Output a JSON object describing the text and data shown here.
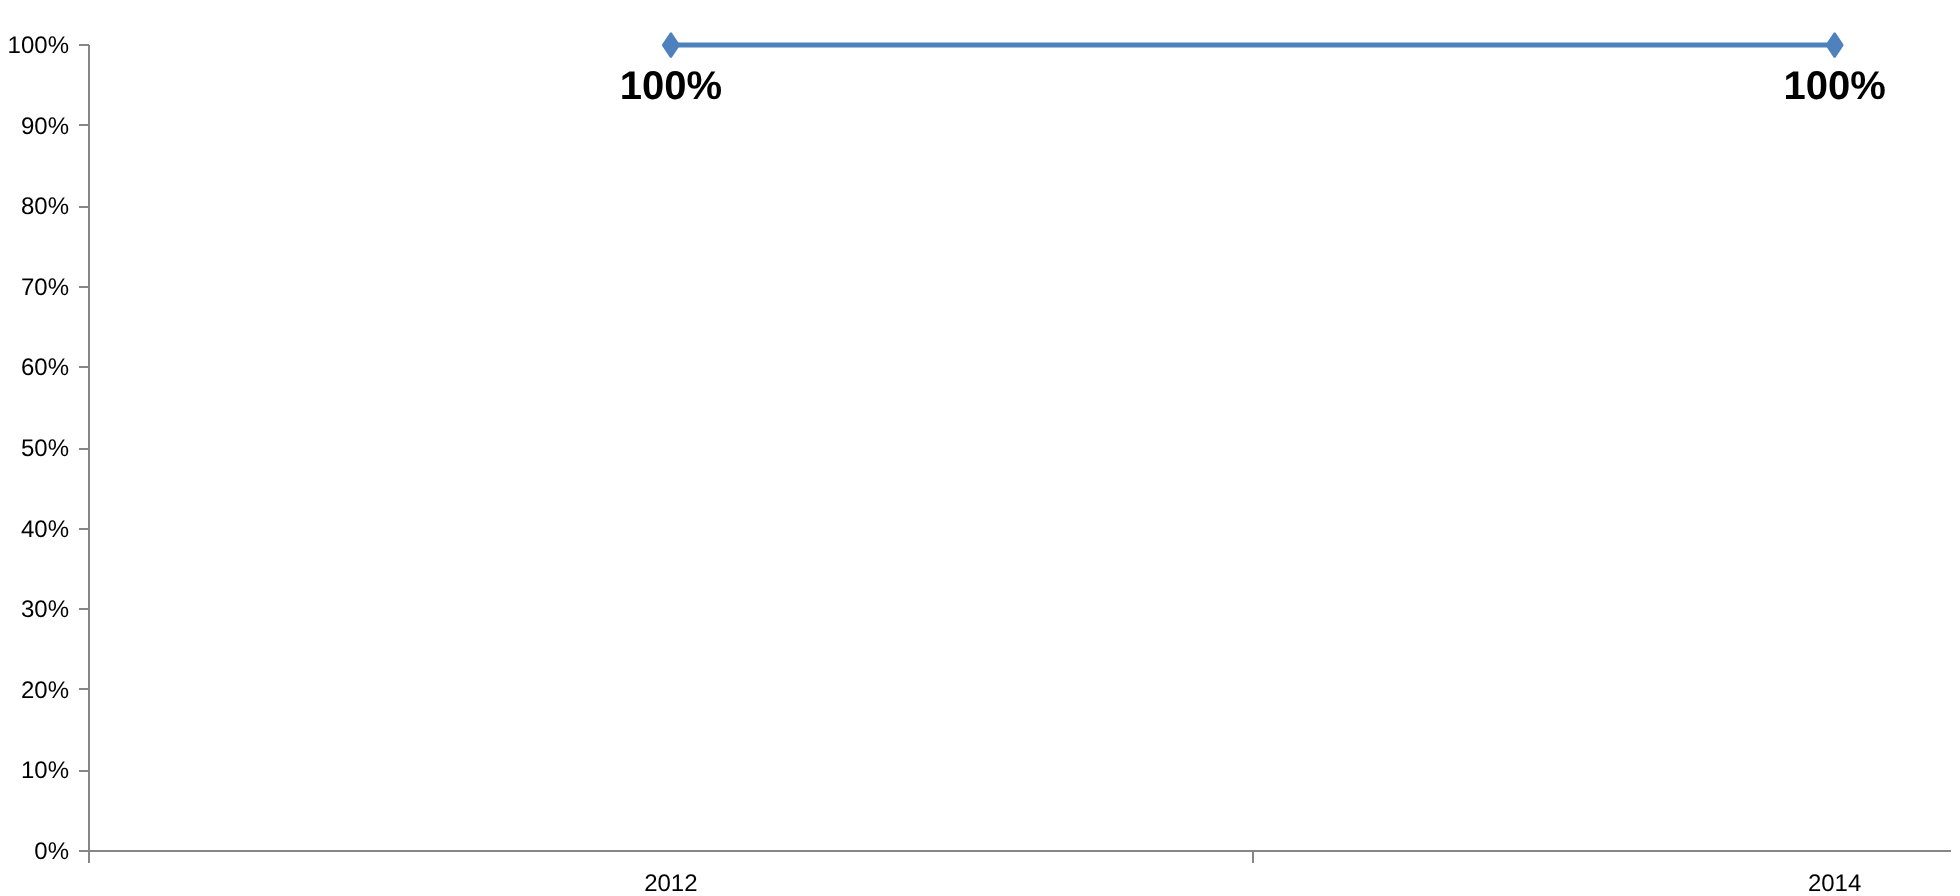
{
  "chart_data": {
    "type": "line",
    "categories": [
      "2012",
      "2014"
    ],
    "series": [
      {
        "color": "#4f81bd",
        "values": [
          100,
          100
        ]
      }
    ],
    "value_labels": [
      "100%",
      "100%"
    ],
    "ylim": [
      0,
      100
    ],
    "yticks": [
      {
        "value": 0,
        "label": "0%"
      },
      {
        "value": 10,
        "label": "10%"
      },
      {
        "value": 20,
        "label": "20%"
      },
      {
        "value": 30,
        "label": "30%"
      },
      {
        "value": 40,
        "label": "40%"
      },
      {
        "value": 50,
        "label": "50%"
      },
      {
        "value": 60,
        "label": "60%"
      },
      {
        "value": 70,
        "label": "70%"
      },
      {
        "value": 80,
        "label": "80%"
      },
      {
        "value": 90,
        "label": "90%"
      },
      {
        "value": 100,
        "label": "100%"
      }
    ],
    "marker": "diamond",
    "grid": false
  }
}
